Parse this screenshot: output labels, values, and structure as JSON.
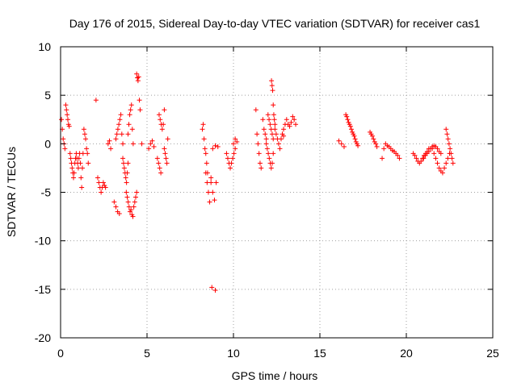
{
  "chart_data": {
    "type": "scatter",
    "title": "Day 176 of 2015, Sidereal Day-to-day VTEC variation (SDTVAR) for receiver cas1",
    "xlabel": "GPS time / hours",
    "ylabel": "SDTVAR / TECUs",
    "xlim": [
      0,
      25
    ],
    "ylim": [
      -20,
      10
    ],
    "xticks": [
      "0",
      "5",
      "10",
      "15",
      "20",
      "25"
    ],
    "yticks": [
      "10",
      "5",
      "0",
      "-5",
      "-10",
      "-15",
      "-20"
    ],
    "grid": true,
    "marker": "+",
    "color": "#ff0000",
    "series": [
      {
        "name": "SDTVAR",
        "segments": [
          {
            "x0": 0.05,
            "x1": 0.25,
            "y": [
              2.5,
              1.5,
              0.5,
              0.0,
              -0.5
            ]
          },
          {
            "x0": 0.3,
            "x1": 0.5,
            "y": [
              4.0,
              3.5,
              3.0,
              2.5,
              2.0,
              1.8
            ]
          },
          {
            "x0": 0.55,
            "x1": 1.3,
            "y": [
              -1.0,
              -1.5,
              -2.0,
              -2.5,
              -3.0,
              -3.5,
              -3.0,
              -2.0,
              -1.5,
              -1.0,
              -1.5,
              -2.0,
              -2.5,
              -1.5,
              -1.0,
              -2.0,
              -3.5,
              -4.5,
              -2.5,
              -1.0
            ]
          },
          {
            "x0": 1.35,
            "x1": 1.6,
            "y": [
              1.5,
              1.0,
              0.5,
              -0.5,
              -1.0,
              -2.0
            ]
          },
          {
            "x0": 2.05,
            "x1": 2.1,
            "y": [
              4.5
            ]
          },
          {
            "x0": 2.15,
            "x1": 2.6,
            "y": [
              -3.5,
              -4.0,
              -4.5,
              -5.0,
              -4.5,
              -4.0,
              -4.3,
              -4.5
            ]
          },
          {
            "x0": 2.75,
            "x1": 2.9,
            "y": [
              0.0,
              0.3,
              -0.5
            ]
          },
          {
            "x0": 3.1,
            "x1": 3.4,
            "y": [
              -6.0,
              -6.5,
              -7.0,
              -7.2
            ]
          },
          {
            "x0": 3.2,
            "x1": 3.6,
            "y": [
              0.5,
              1.0,
              1.5,
              2.0,
              2.5,
              3.0,
              1.0,
              0.0
            ]
          },
          {
            "x0": 3.6,
            "x1": 3.9,
            "y": [
              -1.5,
              -2.0,
              -2.5,
              -3.0,
              -3.5,
              -4.0,
              -3.0,
              -2.0
            ]
          },
          {
            "x0": 3.8,
            "x1": 4.4,
            "y": [
              -5.0,
              -5.5,
              -6.0,
              -6.5,
              -7.0,
              -6.8,
              -7.3,
              -7.5,
              -6.5,
              -6.0,
              -5.5,
              -5.0
            ]
          },
          {
            "x0": 3.9,
            "x1": 4.2,
            "y": [
              1.0,
              2.0,
              3.0,
              3.5,
              4.0,
              1.5,
              0.0
            ]
          },
          {
            "x0": 4.4,
            "x1": 4.6,
            "y": [
              7.2,
              6.8,
              6.5,
              6.9,
              4.5,
              3.5
            ]
          },
          {
            "x0": 4.7,
            "x1": 4.75,
            "y": [
              0.0
            ]
          },
          {
            "x0": 5.1,
            "x1": 5.4,
            "y": [
              -0.5,
              0.0,
              0.3,
              -0.3
            ]
          },
          {
            "x0": 5.6,
            "x1": 5.8,
            "y": [
              -1.5,
              -2.0,
              -2.5,
              -3.0
            ]
          },
          {
            "x0": 5.7,
            "x1": 6.0,
            "y": [
              3.0,
              2.5,
              2.0,
              1.5,
              2.0,
              3.5
            ]
          },
          {
            "x0": 6.0,
            "x1": 6.2,
            "y": [
              -0.5,
              -1.0,
              -1.5,
              -2.0,
              0.5
            ]
          },
          {
            "x0": 8.2,
            "x1": 8.5,
            "y": [
              1.5,
              2.0,
              0.5,
              -0.5,
              -1.0,
              -2.0,
              -3.0
            ]
          },
          {
            "x0": 8.4,
            "x1": 8.7,
            "y": [
              -3.0,
              -4.0,
              -5.0,
              -6.0,
              -4.0
            ]
          },
          {
            "x0": 8.75,
            "x1": 8.95,
            "y": [
              -14.8,
              -15.1
            ]
          },
          {
            "x0": 8.7,
            "x1": 9.0,
            "y": [
              -3.5,
              -5.0,
              -5.8,
              -4.0
            ]
          },
          {
            "x0": 8.8,
            "x1": 9.1,
            "y": [
              -0.5,
              -0.2,
              -0.3
            ]
          },
          {
            "x0": 9.6,
            "x1": 10.1,
            "y": [
              -1.0,
              -1.5,
              -2.0,
              -2.5,
              -2.0,
              -1.5,
              -1.0,
              -0.5
            ]
          },
          {
            "x0": 10.0,
            "x1": 10.2,
            "y": [
              0.0,
              0.5,
              0.2
            ]
          },
          {
            "x0": 11.3,
            "x1": 11.6,
            "y": [
              3.5,
              1.0,
              0.0,
              -1.0,
              -2.0,
              -2.5
            ]
          },
          {
            "x0": 11.7,
            "x1": 11.9,
            "y": [
              2.5,
              1.5,
              1.0,
              0.5
            ]
          },
          {
            "x0": 11.9,
            "x1": 12.3,
            "y": [
              0.0,
              -0.5,
              -1.0,
              -1.5,
              -2.0,
              -2.5,
              -2.0,
              -1.0
            ]
          },
          {
            "x0": 12.0,
            "x1": 12.3,
            "y": [
              3.0,
              2.5,
              2.0,
              1.5,
              1.0,
              0.5
            ]
          },
          {
            "x0": 12.2,
            "x1": 12.4,
            "y": [
              6.5,
              6.0,
              5.5,
              4.0,
              3.0,
              2.5,
              2.0
            ]
          },
          {
            "x0": 12.4,
            "x1": 12.9,
            "y": [
              1.5,
              1.0,
              0.5,
              0.0,
              -0.5,
              0.5,
              1.0,
              0.8
            ]
          },
          {
            "x0": 12.9,
            "x1": 13.6,
            "y": [
              1.5,
              2.0,
              2.5,
              2.0,
              1.8,
              2.2,
              2.8,
              2.5,
              2.0
            ]
          },
          {
            "x0": 16.1,
            "x1": 16.4,
            "y": [
              0.3,
              0.0,
              -0.3
            ]
          },
          {
            "x0": 16.5,
            "x1": 17.2,
            "y": [
              3.0,
              2.8,
              2.5,
              2.2,
              2.0,
              1.8,
              1.5,
              1.2,
              1.0,
              0.8,
              0.5,
              0.2,
              0.0,
              -0.2
            ]
          },
          {
            "x0": 17.9,
            "x1": 18.3,
            "y": [
              1.2,
              1.0,
              0.8,
              0.5,
              0.2,
              0.0,
              -0.3
            ]
          },
          {
            "x0": 18.6,
            "x1": 19.6,
            "y": [
              -1.5,
              -0.5,
              0.0,
              -0.2,
              -0.3,
              -0.5,
              -0.7,
              -0.8,
              -1.0,
              -1.2,
              -1.5
            ]
          },
          {
            "x0": 20.4,
            "x1": 21.3,
            "y": [
              -1.0,
              -1.2,
              -1.5,
              -1.8,
              -2.0,
              -1.8,
              -1.5,
              -1.2,
              -1.0,
              -0.8,
              -0.5
            ]
          },
          {
            "x0": 21.0,
            "x1": 22.0,
            "y": [
              -1.5,
              -1.2,
              -1.0,
              -0.8,
              -0.5,
              -0.3,
              -0.2,
              -0.3,
              -0.5,
              -0.8,
              -1.0
            ]
          },
          {
            "x0": 21.5,
            "x1": 22.5,
            "y": [
              -0.5,
              -1.0,
              -1.5,
              -2.0,
              -2.5,
              -2.8,
              -3.0,
              -2.5,
              -2.0,
              -1.5,
              -1.0
            ]
          },
          {
            "x0": 22.3,
            "x1": 22.7,
            "y": [
              1.5,
              1.0,
              0.5,
              0.0,
              -0.5,
              -1.0,
              -1.5,
              -2.0
            ]
          }
        ]
      }
    ]
  }
}
